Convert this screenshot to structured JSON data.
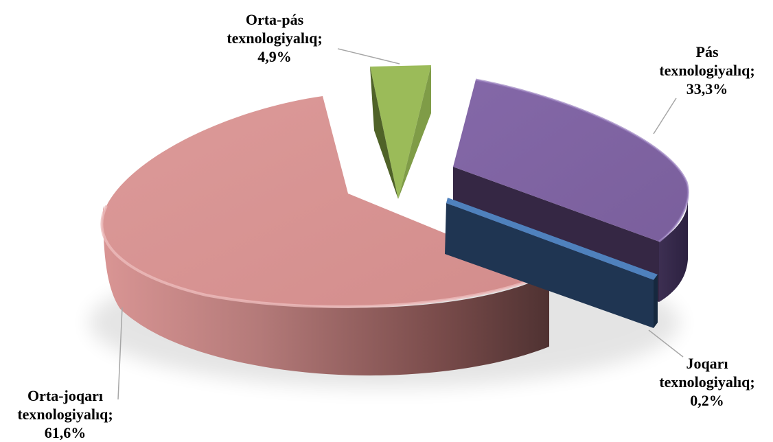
{
  "chart_data": {
    "type": "pie",
    "style": "3d-exploded",
    "legend": "none",
    "slices": [
      {
        "key": "pas",
        "name": "Pás",
        "line1": "Pás",
        "line2": "texnologiyalıq;",
        "value_label": "33,3%",
        "value": 33.3,
        "color": "#8064a2"
      },
      {
        "key": "joqari",
        "name": "Joqarı",
        "line1": "Joqarı",
        "line2": "texnologiyalıq;",
        "value_label": "0,2%",
        "value": 0.2,
        "color": "#2e4d70"
      },
      {
        "key": "orta_joqari",
        "name": "Orta-joqarı",
        "line1": "Orta-joqarı",
        "line2": "texnologiyalıq;",
        "value_label": "61,6%",
        "value": 61.6,
        "color": "#d99594"
      },
      {
        "key": "orta_pas",
        "name": "Orta-pás",
        "line1": "Orta-pás",
        "line2": "texnologiyalıq;",
        "value_label": "4,9%",
        "value": 4.9,
        "color": "#9bbb59"
      }
    ]
  }
}
